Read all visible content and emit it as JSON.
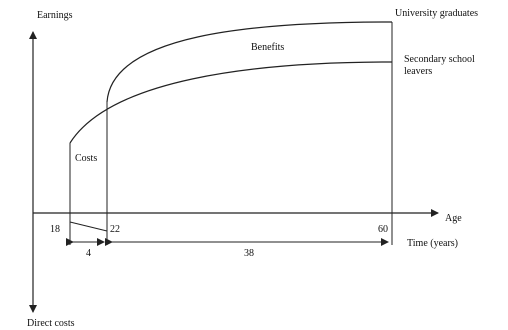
{
  "labels": {
    "y_axis_top": "Earnings",
    "y_axis_bottom": "Direct costs",
    "x_axis": "Age",
    "time_axis": "Time (years)",
    "university": "University graduates",
    "secondary_line1": "Secondary school",
    "secondary_line2": "leavers",
    "benefits": "Benefits",
    "costs": "Costs"
  },
  "ticks": {
    "age_start": "18",
    "age_grad": "22",
    "age_end": "60"
  },
  "spans": {
    "study_years": "4",
    "working_years": "38"
  }
}
